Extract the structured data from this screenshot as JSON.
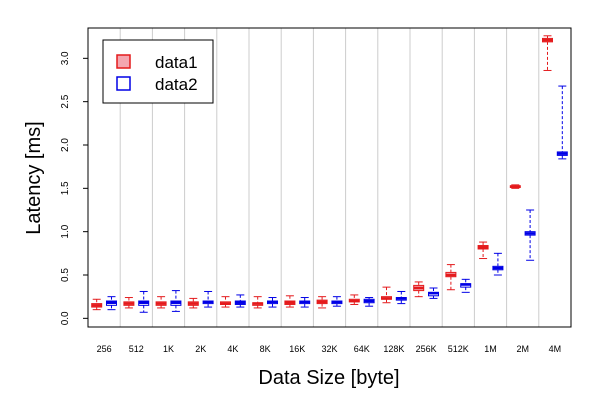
{
  "chart_data": {
    "type": "boxplot",
    "xlabel": "Data Size [byte]",
    "ylabel": "Latency [ms]",
    "ylim": [
      -0.1,
      3.35
    ],
    "yticks": [
      0.0,
      0.5,
      1.0,
      1.5,
      2.0,
      2.5,
      3.0
    ],
    "ytick_labels": [
      "0.0",
      "0.5",
      "1.0",
      "1.5",
      "2.0",
      "2.5",
      "3.0"
    ],
    "categories": [
      "256",
      "512",
      "1K",
      "2K",
      "4K",
      "8K",
      "16K",
      "32K",
      "64K",
      "128K",
      "256K",
      "512K",
      "1M",
      "2M",
      "4M"
    ],
    "grid": "vertical separators between groups",
    "legend_position": "top-left",
    "series": [
      {
        "name": "data1",
        "color": "#e41a1c",
        "fill": "#f4a6b0",
        "boxes": [
          {
            "min": 0.1,
            "q1": 0.13,
            "median": 0.15,
            "q3": 0.17,
            "max": 0.22
          },
          {
            "min": 0.12,
            "q1": 0.15,
            "median": 0.17,
            "q3": 0.19,
            "max": 0.24
          },
          {
            "min": 0.12,
            "q1": 0.15,
            "median": 0.17,
            "q3": 0.19,
            "max": 0.25
          },
          {
            "min": 0.12,
            "q1": 0.15,
            "median": 0.17,
            "q3": 0.19,
            "max": 0.23
          },
          {
            "min": 0.13,
            "q1": 0.16,
            "median": 0.17,
            "q3": 0.19,
            "max": 0.25
          },
          {
            "min": 0.12,
            "q1": 0.15,
            "median": 0.17,
            "q3": 0.18,
            "max": 0.25
          },
          {
            "min": 0.13,
            "q1": 0.16,
            "median": 0.18,
            "q3": 0.2,
            "max": 0.26
          },
          {
            "min": 0.12,
            "q1": 0.17,
            "median": 0.19,
            "q3": 0.21,
            "max": 0.25
          },
          {
            "min": 0.16,
            "q1": 0.19,
            "median": 0.2,
            "q3": 0.22,
            "max": 0.27
          },
          {
            "min": 0.18,
            "q1": 0.22,
            "median": 0.23,
            "q3": 0.25,
            "max": 0.36
          },
          {
            "min": 0.25,
            "q1": 0.32,
            "median": 0.35,
            "q3": 0.38,
            "max": 0.42
          },
          {
            "min": 0.33,
            "q1": 0.48,
            "median": 0.5,
            "q3": 0.53,
            "max": 0.62
          },
          {
            "min": 0.69,
            "q1": 0.8,
            "median": 0.82,
            "q3": 0.84,
            "max": 0.88
          },
          {
            "min": 1.5,
            "q1": 1.51,
            "median": 1.52,
            "q3": 1.53,
            "max": 1.54
          },
          {
            "min": 2.86,
            "q1": 3.19,
            "median": 3.21,
            "q3": 3.23,
            "max": 3.26
          }
        ]
      },
      {
        "name": "data2",
        "color": "#0000e6",
        "fill": "#ffffff",
        "boxes": [
          {
            "min": 0.1,
            "q1": 0.15,
            "median": 0.18,
            "q3": 0.2,
            "max": 0.25
          },
          {
            "min": 0.07,
            "q1": 0.15,
            "median": 0.18,
            "q3": 0.2,
            "max": 0.31
          },
          {
            "min": 0.08,
            "q1": 0.15,
            "median": 0.18,
            "q3": 0.2,
            "max": 0.32
          },
          {
            "min": 0.13,
            "q1": 0.17,
            "median": 0.19,
            "q3": 0.2,
            "max": 0.31
          },
          {
            "min": 0.13,
            "q1": 0.16,
            "median": 0.18,
            "q3": 0.2,
            "max": 0.27
          },
          {
            "min": 0.13,
            "q1": 0.17,
            "median": 0.19,
            "q3": 0.2,
            "max": 0.24
          },
          {
            "min": 0.13,
            "q1": 0.17,
            "median": 0.19,
            "q3": 0.2,
            "max": 0.24
          },
          {
            "min": 0.14,
            "q1": 0.17,
            "median": 0.19,
            "q3": 0.2,
            "max": 0.25
          },
          {
            "min": 0.14,
            "q1": 0.18,
            "median": 0.2,
            "q3": 0.22,
            "max": 0.24
          },
          {
            "min": 0.17,
            "q1": 0.21,
            "median": 0.23,
            "q3": 0.24,
            "max": 0.31
          },
          {
            "min": 0.23,
            "q1": 0.26,
            "median": 0.29,
            "q3": 0.3,
            "max": 0.35
          },
          {
            "min": 0.3,
            "q1": 0.36,
            "median": 0.39,
            "q3": 0.4,
            "max": 0.45
          },
          {
            "min": 0.5,
            "q1": 0.56,
            "median": 0.58,
            "q3": 0.6,
            "max": 0.75
          },
          {
            "min": 0.67,
            "q1": 0.96,
            "median": 0.98,
            "q3": 1.0,
            "max": 1.25
          },
          {
            "min": 1.84,
            "q1": 1.88,
            "median": 1.9,
            "q3": 1.92,
            "max": 2.68
          }
        ]
      }
    ]
  }
}
